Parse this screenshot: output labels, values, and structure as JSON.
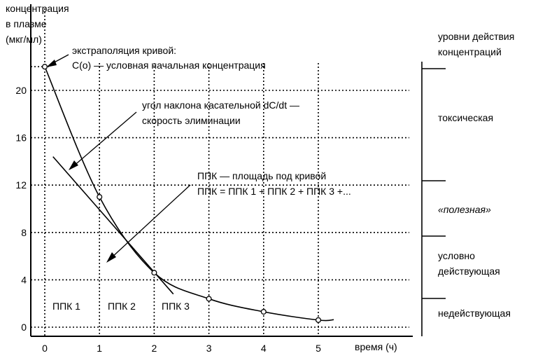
{
  "chart_data": {
    "type": "line",
    "title": "",
    "ylabel_lines": [
      "концентрация",
      "в плазме",
      "(мкг/мл)"
    ],
    "xlabel": "время (ч)",
    "x_ticks": [
      0,
      1,
      2,
      3,
      4,
      5
    ],
    "y_ticks": [
      0,
      4,
      8,
      12,
      16,
      20
    ],
    "xlim": [
      0,
      5
    ],
    "ylim": [
      0,
      22
    ],
    "grid": true,
    "series": [
      {
        "points": [
          {
            "x": 0,
            "y": 22
          },
          {
            "x": 1,
            "y": 11
          },
          {
            "x": 2,
            "y": 4.6
          },
          {
            "x": 3,
            "y": 2.4
          },
          {
            "x": 4,
            "y": 1.3
          },
          {
            "x": 5,
            "y": 0.6
          }
        ]
      }
    ],
    "tangent_line": {
      "x0": 0.15,
      "y0": 14.4,
      "x1": 2.35,
      "y1": 2.8
    },
    "area_labels": [
      "ППК 1",
      "ППК 2",
      "ППК 3"
    ],
    "annotations": [
      {
        "lines": [
          "экстраполяция кривой:",
          "C(o) — условная начальная концентрация"
        ]
      },
      {
        "lines": [
          "угол наклона касательной dC/dt —",
          "скорость элиминации"
        ]
      },
      {
        "lines": [
          "ППК — площадь под кривой",
          "ППК = ППК 1 + ППК 2 + ППК 3 +..."
        ]
      }
    ],
    "levels_title_lines": [
      "уровни действия",
      "концентраций"
    ],
    "levels": [
      {
        "lines": [
          "токсическая"
        ]
      },
      {
        "lines": [
          "«полезная»"
        ]
      },
      {
        "lines": [
          "условно",
          "действующая"
        ]
      },
      {
        "lines": [
          "недействующая"
        ]
      }
    ]
  }
}
